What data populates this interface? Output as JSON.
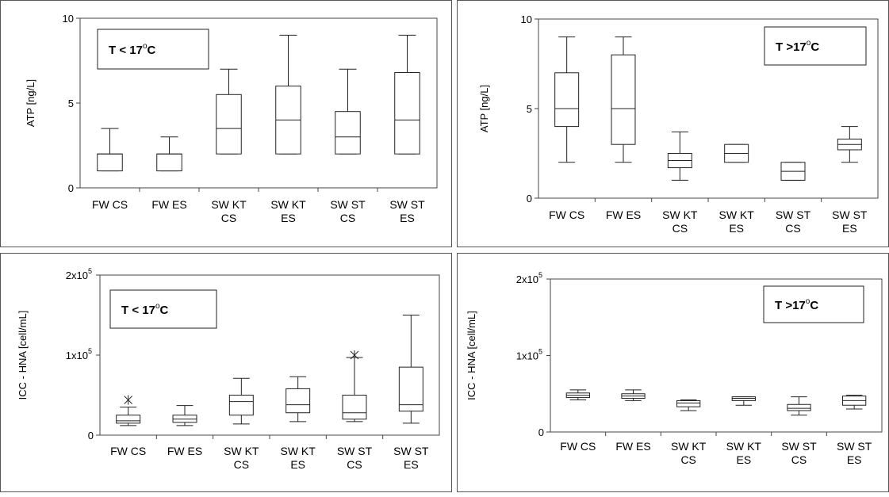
{
  "charts": [
    {
      "id": "atp_low",
      "chart_data": {
        "type": "box",
        "title": "T < 17°C",
        "title_parts": [
          "T < 17",
          "o",
          "C"
        ],
        "ylabel": "ATP  [ng/L]",
        "ylim": [
          0,
          10
        ],
        "yticks": [
          {
            "v": 0,
            "t": "0"
          },
          {
            "v": 5,
            "t": "5"
          },
          {
            "v": 10,
            "t": "10"
          }
        ],
        "categories": [
          [
            "FW CS"
          ],
          [
            "FW ES"
          ],
          [
            "SW KT",
            "CS"
          ],
          [
            "SW KT",
            "ES"
          ],
          [
            "SW ST",
            "CS"
          ],
          [
            "SW ST",
            "ES"
          ]
        ],
        "boxes": [
          {
            "min": 1,
            "q1": 1,
            "median": 2,
            "q3": 2,
            "max": 3.5
          },
          {
            "min": 1,
            "q1": 1,
            "median": 2,
            "q3": 2,
            "max": 3
          },
          {
            "min": 2,
            "q1": 2,
            "median": 3.5,
            "q3": 5.5,
            "max": 7
          },
          {
            "min": 2,
            "q1": 2,
            "median": 4,
            "q3": 6,
            "max": 9
          },
          {
            "min": 2,
            "q1": 2,
            "median": 3,
            "q3": 4.5,
            "max": 7
          },
          {
            "min": 2,
            "q1": 2,
            "median": 4,
            "q3": 6.8,
            "max": 9
          }
        ],
        "legend_position": "top-left"
      }
    },
    {
      "id": "atp_high",
      "chart_data": {
        "type": "box",
        "title": "T >17°C",
        "title_parts": [
          "T >17",
          "o",
          "C"
        ],
        "ylabel": "ATP  [ng/L]",
        "ylim": [
          0,
          10
        ],
        "yticks": [
          {
            "v": 0,
            "t": "0"
          },
          {
            "v": 5,
            "t": "5"
          },
          {
            "v": 10,
            "t": "10"
          }
        ],
        "categories": [
          [
            "FW CS"
          ],
          [
            "FW ES"
          ],
          [
            "SW KT",
            "CS"
          ],
          [
            "SW KT",
            "ES"
          ],
          [
            "SW ST",
            "CS"
          ],
          [
            "SW ST",
            "ES"
          ]
        ],
        "boxes": [
          {
            "min": 2,
            "q1": 4,
            "median": 5,
            "q3": 7,
            "max": 9
          },
          {
            "min": 2,
            "q1": 3,
            "median": 5,
            "q3": 8,
            "max": 9
          },
          {
            "min": 1,
            "q1": 1.7,
            "median": 2.1,
            "q3": 2.5,
            "max": 3.7
          },
          {
            "min": 2,
            "q1": 2,
            "median": 2.5,
            "q3": 3,
            "max": 3
          },
          {
            "min": 1,
            "q1": 1,
            "median": 1.5,
            "q3": 2,
            "max": 2
          },
          {
            "min": 2,
            "q1": 2.7,
            "median": 3,
            "q3": 3.3,
            "max": 4
          }
        ],
        "legend_position": "top-right"
      }
    },
    {
      "id": "icc_low",
      "chart_data": {
        "type": "box",
        "title": "T < 17°C",
        "title_parts": [
          "T < 17",
          "o",
          "C"
        ],
        "ylabel": "ICC - HNA  [cell/mL]",
        "ylim": [
          0,
          200000
        ],
        "yticks": [
          {
            "v": 0,
            "t": "0"
          },
          {
            "v": 100000,
            "t": "1x10",
            "sup": "5"
          },
          {
            "v": 200000,
            "t": "2x10",
            "sup": "5"
          }
        ],
        "categories": [
          [
            "FW CS"
          ],
          [
            "FW ES"
          ],
          [
            "SW KT",
            "CS"
          ],
          [
            "SW KT",
            "ES"
          ],
          [
            "SW ST",
            "CS"
          ],
          [
            "SW ST",
            "ES"
          ]
        ],
        "boxes": [
          {
            "min": 12000,
            "q1": 15000,
            "median": 18000,
            "q3": 25000,
            "max": 35000,
            "outliers": [
              44000
            ]
          },
          {
            "min": 12000,
            "q1": 16000,
            "median": 20000,
            "q3": 25000,
            "max": 37000
          },
          {
            "min": 14000,
            "q1": 25000,
            "median": 42000,
            "q3": 50000,
            "max": 71000
          },
          {
            "min": 17000,
            "q1": 28000,
            "median": 38000,
            "q3": 58000,
            "max": 73000
          },
          {
            "min": 17000,
            "q1": 20000,
            "median": 28000,
            "q3": 50000,
            "max": 97000,
            "outliers": [
              100000
            ]
          },
          {
            "min": 15000,
            "q1": 30000,
            "median": 38000,
            "q3": 85000,
            "max": 150000
          }
        ],
        "legend_position": "top-left"
      }
    },
    {
      "id": "icc_high",
      "chart_data": {
        "type": "box",
        "title": "T >17°C",
        "title_parts": [
          "T >17",
          "o",
          "C"
        ],
        "ylabel": "ICC - HNA  [cell/mL]",
        "ylim": [
          0,
          200000
        ],
        "yticks": [
          {
            "v": 0,
            "t": "0"
          },
          {
            "v": 100000,
            "t": "1x10",
            "sup": "5"
          },
          {
            "v": 200000,
            "t": "2x10",
            "sup": "5"
          }
        ],
        "categories": [
          [
            "FW CS"
          ],
          [
            "FW ES"
          ],
          [
            "SW KT",
            "CS"
          ],
          [
            "SW KT",
            "ES"
          ],
          [
            "SW ST",
            "CS"
          ],
          [
            "SW ST",
            "ES"
          ]
        ],
        "boxes": [
          {
            "min": 42000,
            "q1": 45000,
            "median": 48000,
            "q3": 51000,
            "max": 55000
          },
          {
            "min": 41000,
            "q1": 44000,
            "median": 47000,
            "q3": 50000,
            "max": 55000
          },
          {
            "min": 28000,
            "q1": 33000,
            "median": 38000,
            "q3": 41000,
            "max": 42000
          },
          {
            "min": 35000,
            "q1": 41000,
            "median": 44000,
            "q3": 46000,
            "max": 46000
          },
          {
            "min": 22000,
            "q1": 28000,
            "median": 31000,
            "q3": 36000,
            "max": 46000
          },
          {
            "min": 30000,
            "q1": 35000,
            "median": 41000,
            "q3": 47000,
            "max": 48000
          }
        ],
        "legend_position": "top-right"
      }
    }
  ]
}
